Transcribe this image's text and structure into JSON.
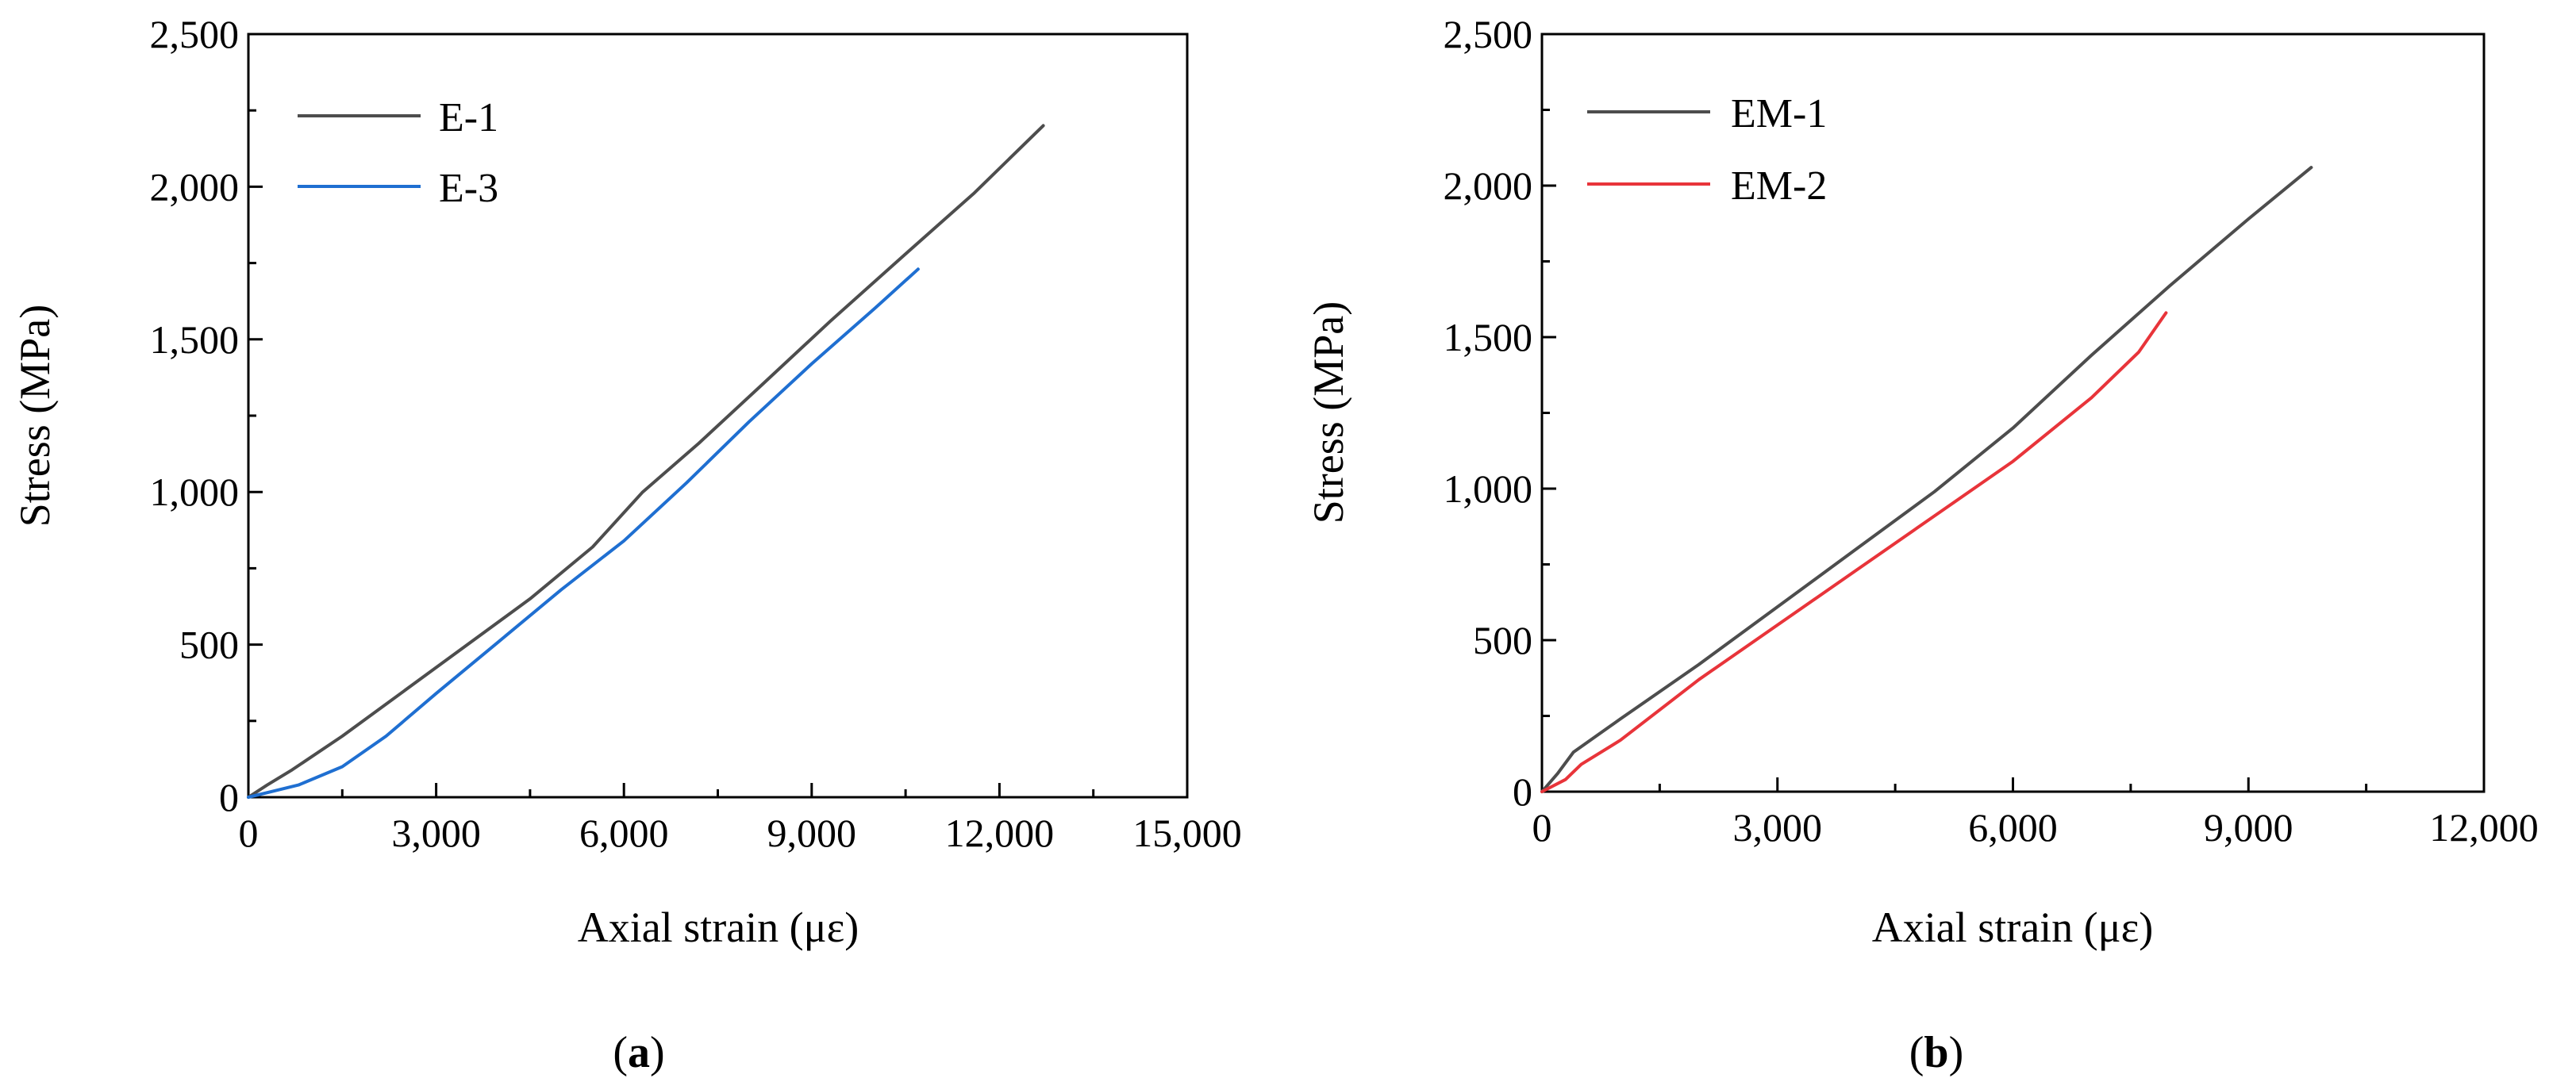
{
  "chart_data": [
    {
      "type": "line",
      "panel_label": "a",
      "title": "",
      "xlabel": "Axial strain (με)",
      "ylabel": "Stress (MPa)",
      "xlim": [
        0,
        15000
      ],
      "ylim": [
        0,
        2500
      ],
      "xticks": [
        0,
        3000,
        6000,
        9000,
        12000,
        15000
      ],
      "xtick_labels": [
        "0",
        "3,000",
        "6,000",
        "9,000",
        "12,000",
        "15,000"
      ],
      "yticks": [
        0,
        500,
        1000,
        1500,
        2000,
        2500
      ],
      "ytick_labels": [
        "0",
        "500",
        "1,000",
        "1,500",
        "2,000",
        "2,500"
      ],
      "grid": false,
      "legend_position": "top-left",
      "series": [
        {
          "name": "E-1",
          "color": "#4d4d4d",
          "x": [
            0,
            300,
            700,
            1500,
            2500,
            3500,
            4500,
            5500,
            6300,
            7200,
            8200,
            9300,
            10500,
            11600,
            12700
          ],
          "y": [
            0,
            40,
            90,
            200,
            350,
            500,
            650,
            820,
            1000,
            1160,
            1350,
            1560,
            1780,
            1980,
            2200
          ]
        },
        {
          "name": "E-3",
          "color": "#1f6fd1",
          "x": [
            0,
            400,
            800,
            1500,
            2200,
            3000,
            4000,
            5000,
            6000,
            7000,
            8000,
            9000,
            10000,
            10700
          ],
          "y": [
            0,
            20,
            40,
            100,
            200,
            340,
            510,
            680,
            840,
            1030,
            1230,
            1420,
            1600,
            1730
          ]
        }
      ]
    },
    {
      "type": "line",
      "panel_label": "b",
      "title": "",
      "xlabel": "Axial strain (με)",
      "ylabel": "Stress (MPa)",
      "xlim": [
        0,
        12000
      ],
      "ylim": [
        0,
        2500
      ],
      "xticks": [
        0,
        3000,
        6000,
        9000,
        12000
      ],
      "xtick_labels": [
        "0",
        "3,000",
        "6,000",
        "9,000",
        "12,000"
      ],
      "yticks": [
        0,
        500,
        1000,
        1500,
        2000,
        2500
      ],
      "ytick_labels": [
        "0",
        "500",
        "1,000",
        "1,500",
        "2,000",
        "2,500"
      ],
      "grid": false,
      "legend_position": "top-left",
      "series": [
        {
          "name": "EM-1",
          "color": "#4d4d4d",
          "x": [
            0,
            200,
            400,
            1000,
            2000,
            3000,
            4000,
            5000,
            6000,
            7000,
            8000,
            9000,
            9800
          ],
          "y": [
            0,
            60,
            130,
            240,
            420,
            610,
            800,
            990,
            1200,
            1440,
            1670,
            1890,
            2060
          ]
        },
        {
          "name": "EM-2",
          "color": "#e8343a",
          "x": [
            0,
            300,
            500,
            1000,
            2000,
            3000,
            4000,
            5000,
            6000,
            7000,
            7600,
            7950
          ],
          "y": [
            0,
            40,
            90,
            170,
            370,
            550,
            730,
            910,
            1090,
            1300,
            1450,
            1580
          ]
        }
      ]
    }
  ]
}
